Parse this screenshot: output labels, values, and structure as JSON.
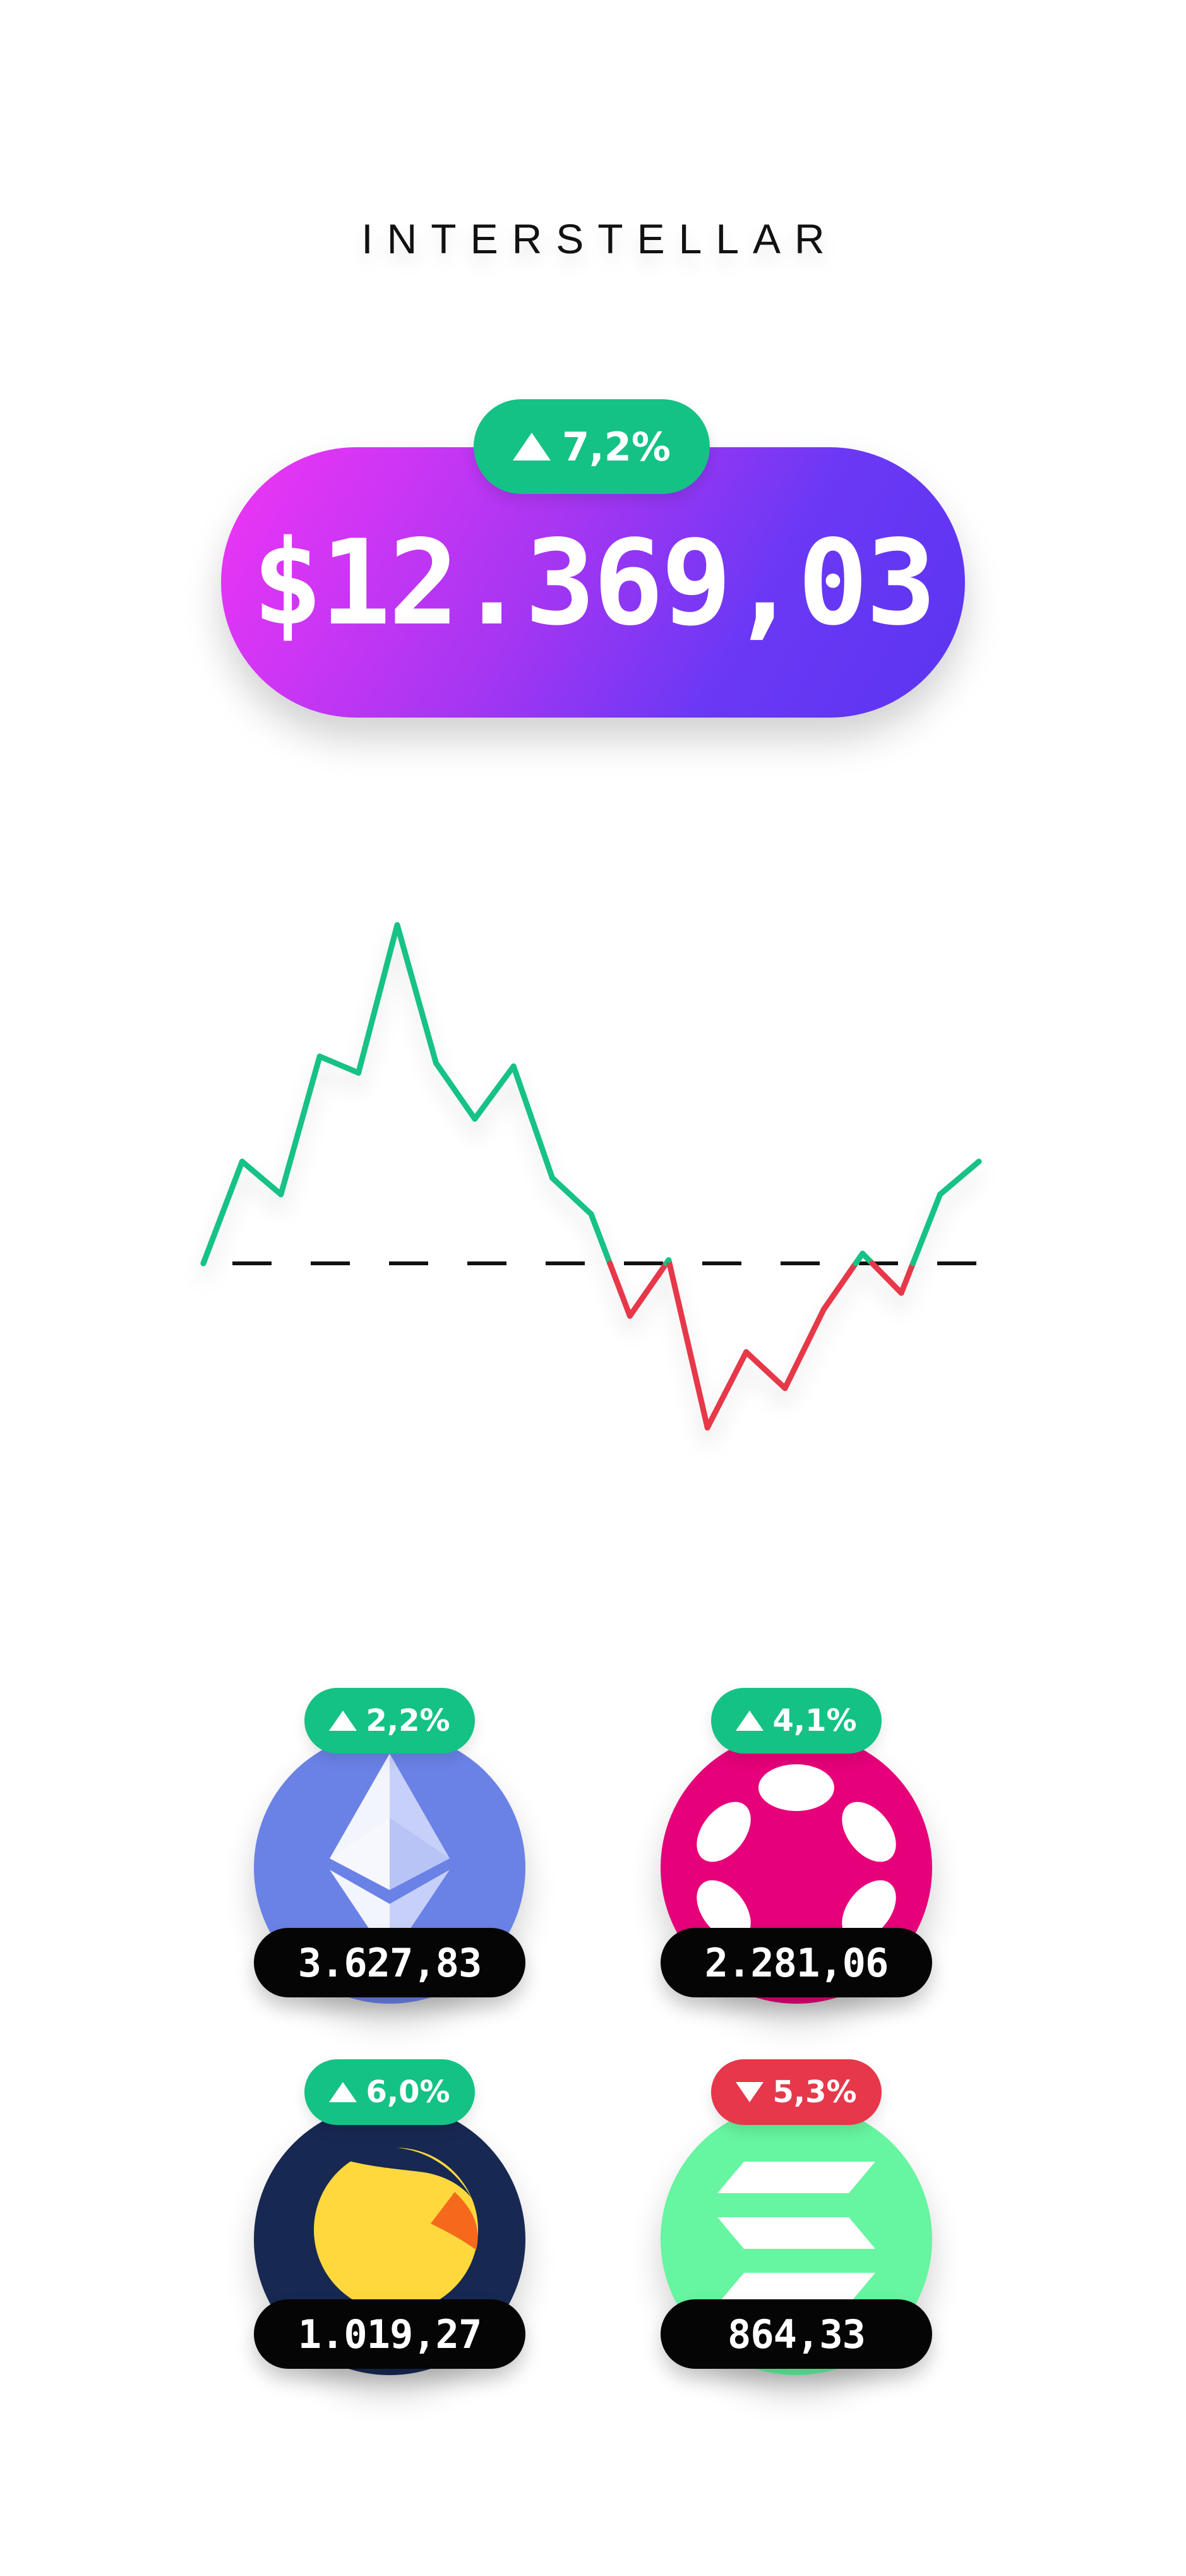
{
  "brand": {
    "name": "INTERSTELLAR"
  },
  "portfolio": {
    "balance": "$12.369,03",
    "change": "7,2%",
    "direction": "up"
  },
  "colors": {
    "positive": "#14c285",
    "negative": "#e6384a",
    "gradient_start": "#f135f5",
    "gradient_end": "#5a35f0",
    "price_tag": "#050505"
  },
  "chart_data": {
    "type": "line",
    "baseline": 0,
    "values": [
      0,
      3.1,
      2.1,
      6.3,
      5.8,
      10.3,
      6.1,
      4.4,
      6.0,
      2.6,
      1.5,
      -1.6,
      0.1,
      -5.0,
      -2.7,
      -3.8,
      -1.4,
      0.3,
      -0.9,
      2.1,
      3.1
    ],
    "colors": {
      "above": "#14c285",
      "below": "#e6384a"
    },
    "grid": false
  },
  "coins": [
    {
      "name": "ethereum",
      "icon": "ethereum-icon",
      "change": "2,2%",
      "direction": "up",
      "price": "3.627,83",
      "color": "#6a82e6"
    },
    {
      "name": "polkadot",
      "icon": "polkadot-icon",
      "change": "4,1%",
      "direction": "up",
      "price": "2.281,06",
      "color": "#e6007a"
    },
    {
      "name": "terra",
      "icon": "terra-luna-icon",
      "change": "6,0%",
      "direction": "up",
      "price": "1.019,27",
      "color": "#172852"
    },
    {
      "name": "solana",
      "icon": "solana-icon",
      "change": "5,3%",
      "direction": "down",
      "price": "864,33",
      "color": "#66f5a0"
    }
  ]
}
